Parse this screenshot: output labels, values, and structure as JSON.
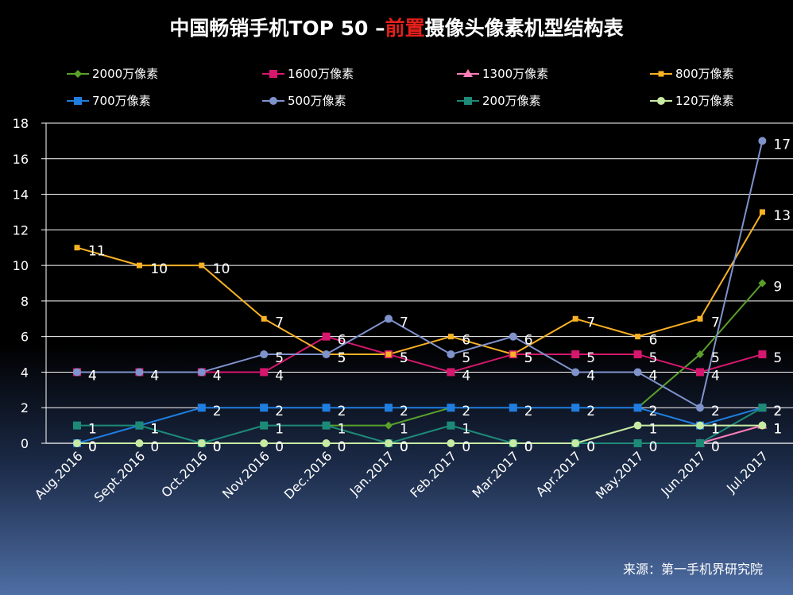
{
  "chart_data": {
    "type": "line",
    "title_parts": [
      "中国畅销手机TOP 50 –",
      "前置",
      "摄像头像素机型结构表"
    ],
    "source": "来源：第一手机界研究院",
    "categories": [
      "Aug.2016",
      "Sept.2016",
      "Oct.2016",
      "Nov.2016",
      "Dec.2016",
      "Jan.2017",
      "Feb.2017",
      "Mar.2017",
      "Apr.2017",
      "May.2017",
      "Jun.2017",
      "Jul.2017"
    ],
    "ylim": [
      0,
      18
    ],
    "yticks": [
      0,
      2,
      4,
      6,
      8,
      10,
      12,
      14,
      16,
      18
    ],
    "grid": true,
    "legend_position": "top",
    "series": [
      {
        "name": "2000万像素",
        "color": "#5aa02c",
        "marker": "diamond",
        "values": [
          null,
          null,
          null,
          null,
          1,
          1,
          2,
          null,
          null,
          2,
          5,
          9
        ],
        "labels": [
          null,
          null,
          null,
          null,
          null,
          1,
          null,
          null,
          null,
          null,
          5,
          9
        ]
      },
      {
        "name": "1600万像素",
        "color": "#d6176e",
        "marker": "square",
        "values": [
          4,
          4,
          4,
          4,
          6,
          5,
          4,
          5,
          5,
          5,
          4,
          5
        ],
        "labels": [
          4,
          4,
          4,
          4,
          6,
          5,
          4,
          5,
          5,
          5,
          4,
          5
        ]
      },
      {
        "name": "1300万像素",
        "color": "#ff7eb9",
        "marker": "triangle",
        "values": [
          null,
          null,
          null,
          null,
          null,
          null,
          null,
          null,
          null,
          null,
          0,
          1
        ],
        "labels": [
          null,
          null,
          null,
          null,
          null,
          null,
          null,
          null,
          null,
          null,
          null,
          1
        ]
      },
      {
        "name": "800万像素",
        "color": "#f9b225",
        "marker": "small-square",
        "values": [
          11,
          10,
          10,
          7,
          5,
          5,
          6,
          5,
          7,
          6,
          7,
          13
        ],
        "labels": [
          11,
          10,
          10,
          7,
          5,
          5,
          6,
          5,
          7,
          6,
          7,
          13
        ]
      },
      {
        "name": "700万像素",
        "color": "#1f7ee0",
        "marker": "square",
        "values": [
          0,
          1,
          2,
          2,
          2,
          2,
          2,
          2,
          2,
          2,
          1,
          2
        ],
        "labels": [
          0,
          1,
          2,
          2,
          2,
          2,
          2,
          2,
          2,
          2,
          1,
          2
        ]
      },
      {
        "name": "500万像素",
        "color": "#7f92cc",
        "marker": "circle",
        "values": [
          4,
          4,
          4,
          5,
          5,
          7,
          5,
          6,
          4,
          4,
          2,
          17
        ],
        "labels": [
          4,
          4,
          4,
          5,
          5,
          7,
          5,
          6,
          4,
          4,
          2,
          17
        ]
      },
      {
        "name": "200万像素",
        "color": "#1d8a78",
        "marker": "square",
        "values": [
          1,
          1,
          0,
          1,
          1,
          0,
          1,
          0,
          0,
          0,
          0,
          2
        ],
        "labels": [
          1,
          1,
          0,
          1,
          1,
          0,
          1,
          0,
          0,
          0,
          0,
          2
        ]
      },
      {
        "name": "120万像素",
        "color": "#c8eba3",
        "marker": "circle",
        "values": [
          0,
          0,
          0,
          0,
          0,
          0,
          0,
          0,
          0,
          1,
          1,
          1
        ],
        "labels": [
          0,
          0,
          0,
          0,
          0,
          0,
          0,
          0,
          0,
          1,
          1,
          1
        ]
      }
    ]
  }
}
